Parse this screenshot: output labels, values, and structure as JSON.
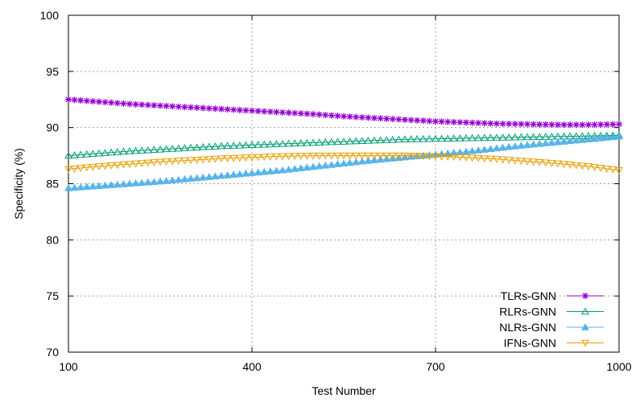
{
  "chart_data": {
    "type": "line",
    "title": "",
    "xlabel": "Test Number",
    "ylabel": "Specificity (%)",
    "xlim": [
      100,
      1000
    ],
    "ylim": [
      70,
      100
    ],
    "xticks": [
      "100",
      "400",
      "700",
      "1000"
    ],
    "yticks": [
      "70",
      "75",
      "80",
      "85",
      "90",
      "95",
      "100"
    ],
    "grid": true,
    "legend_position": "bottom-right",
    "x": [
      100,
      150,
      200,
      250,
      300,
      350,
      400,
      450,
      500,
      550,
      600,
      650,
      700,
      750,
      800,
      850,
      900,
      950,
      1000
    ],
    "series": [
      {
        "name": "TLRs-GNN",
        "color": "#9400d3",
        "marker": "star",
        "values": [
          92.5,
          92.3,
          92.1,
          91.95,
          91.8,
          91.65,
          91.5,
          91.35,
          91.2,
          91.0,
          90.85,
          90.7,
          90.55,
          90.45,
          90.35,
          90.3,
          90.25,
          90.25,
          90.3
        ]
      },
      {
        "name": "RLRs-GNN",
        "color": "#009e73",
        "marker": "triangle-up-open",
        "values": [
          87.5,
          87.7,
          87.9,
          88.05,
          88.2,
          88.35,
          88.45,
          88.55,
          88.65,
          88.75,
          88.85,
          88.95,
          89.0,
          89.05,
          89.1,
          89.15,
          89.2,
          89.25,
          89.3
        ]
      },
      {
        "name": "NLRs-GNN",
        "color": "#56b4e9",
        "marker": "triangle-up-filled",
        "values": [
          84.6,
          84.8,
          85.0,
          85.2,
          85.45,
          85.7,
          85.95,
          86.2,
          86.5,
          86.8,
          87.1,
          87.35,
          87.6,
          87.85,
          88.15,
          88.45,
          88.7,
          88.95,
          89.2
        ]
      },
      {
        "name": "IFNs-GNN",
        "color": "#e69f00",
        "marker": "triangle-down-open",
        "values": [
          86.3,
          86.55,
          86.75,
          86.95,
          87.1,
          87.25,
          87.35,
          87.45,
          87.5,
          87.5,
          87.5,
          87.5,
          87.45,
          87.35,
          87.2,
          87.0,
          86.8,
          86.55,
          86.2
        ]
      }
    ]
  }
}
